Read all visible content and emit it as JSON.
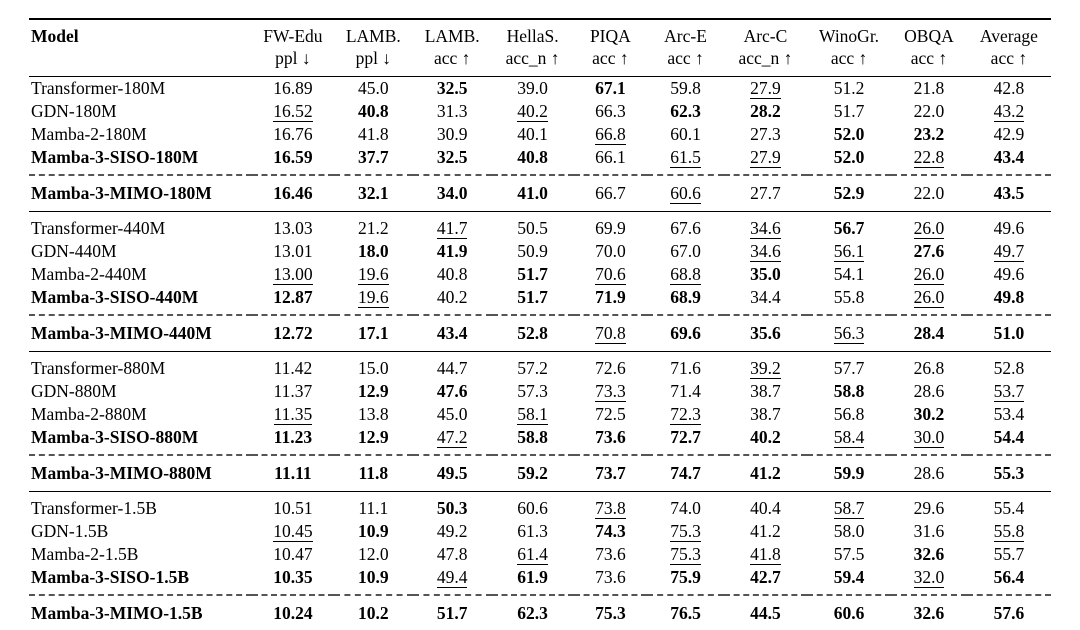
{
  "table": {
    "columns": [
      {
        "l1": "Model",
        "l2": ""
      },
      {
        "l1": "FW-Edu",
        "l2": "ppl ↓"
      },
      {
        "l1": "LAMB.",
        "l2": "ppl ↓"
      },
      {
        "l1": "LAMB.",
        "l2": "acc ↑"
      },
      {
        "l1": "HellaS.",
        "l2": "acc_n ↑"
      },
      {
        "l1": "PIQA",
        "l2": "acc ↑"
      },
      {
        "l1": "Arc-E",
        "l2": "acc ↑"
      },
      {
        "l1": "Arc-C",
        "l2": "acc_n ↑"
      },
      {
        "l1": "WinoGr.",
        "l2": "acc ↑"
      },
      {
        "l1": "OBQA",
        "l2": "acc ↑"
      },
      {
        "l1": "Average",
        "l2": "acc ↑"
      }
    ],
    "style_legend": {
      "b": "bold",
      "u": "underline",
      "": "regular"
    },
    "groups": [
      {
        "rows": [
          {
            "model": "Transformer-180M",
            "bold": false,
            "cells": [
              [
                "16.89",
                ""
              ],
              [
                "45.0",
                ""
              ],
              [
                "32.5",
                "b"
              ],
              [
                "39.0",
                ""
              ],
              [
                "67.1",
                "b"
              ],
              [
                "59.8",
                ""
              ],
              [
                "27.9",
                "u"
              ],
              [
                "51.2",
                ""
              ],
              [
                "21.8",
                ""
              ],
              [
                "42.8",
                ""
              ]
            ]
          },
          {
            "model": "GDN-180M",
            "bold": false,
            "cells": [
              [
                "16.52",
                "u"
              ],
              [
                "40.8",
                "b"
              ],
              [
                "31.3",
                ""
              ],
              [
                "40.2",
                "u"
              ],
              [
                "66.3",
                ""
              ],
              [
                "62.3",
                "b"
              ],
              [
                "28.2",
                "b"
              ],
              [
                "51.7",
                ""
              ],
              [
                "22.0",
                ""
              ],
              [
                "43.2",
                "u"
              ]
            ]
          },
          {
            "model": "Mamba-2-180M",
            "bold": false,
            "cells": [
              [
                "16.76",
                ""
              ],
              [
                "41.8",
                ""
              ],
              [
                "30.9",
                ""
              ],
              [
                "40.1",
                ""
              ],
              [
                "66.8",
                "u"
              ],
              [
                "60.1",
                ""
              ],
              [
                "27.3",
                ""
              ],
              [
                "52.0",
                "b"
              ],
              [
                "23.2",
                "b"
              ],
              [
                "42.9",
                ""
              ]
            ]
          },
          {
            "model": "Mamba-3-SISO-180M",
            "bold": true,
            "cells": [
              [
                "16.59",
                "b"
              ],
              [
                "37.7",
                "b"
              ],
              [
                "32.5",
                "b"
              ],
              [
                "40.8",
                "b"
              ],
              [
                "66.1",
                ""
              ],
              [
                "61.5",
                "u"
              ],
              [
                "27.9",
                "u"
              ],
              [
                "52.0",
                "b"
              ],
              [
                "22.8",
                "u"
              ],
              [
                "43.4",
                "b"
              ]
            ]
          }
        ],
        "mimo": {
          "model": "Mamba-3-MIMO-180M",
          "bold": true,
          "cells": [
            [
              "16.46",
              "b"
            ],
            [
              "32.1",
              "b"
            ],
            [
              "34.0",
              "b"
            ],
            [
              "41.0",
              "b"
            ],
            [
              "66.7",
              ""
            ],
            [
              "60.6",
              "u"
            ],
            [
              "27.7",
              ""
            ],
            [
              "52.9",
              "b"
            ],
            [
              "22.0",
              ""
            ],
            [
              "43.5",
              "b"
            ]
          ]
        }
      },
      {
        "rows": [
          {
            "model": "Transformer-440M",
            "bold": false,
            "cells": [
              [
                "13.03",
                ""
              ],
              [
                "21.2",
                ""
              ],
              [
                "41.7",
                "u"
              ],
              [
                "50.5",
                ""
              ],
              [
                "69.9",
                ""
              ],
              [
                "67.6",
                ""
              ],
              [
                "34.6",
                "u"
              ],
              [
                "56.7",
                "b"
              ],
              [
                "26.0",
                "u"
              ],
              [
                "49.6",
                ""
              ]
            ]
          },
          {
            "model": "GDN-440M",
            "bold": false,
            "cells": [
              [
                "13.01",
                ""
              ],
              [
                "18.0",
                "b"
              ],
              [
                "41.9",
                "b"
              ],
              [
                "50.9",
                ""
              ],
              [
                "70.0",
                ""
              ],
              [
                "67.0",
                ""
              ],
              [
                "34.6",
                "u"
              ],
              [
                "56.1",
                "u"
              ],
              [
                "27.6",
                "b"
              ],
              [
                "49.7",
                "u"
              ]
            ]
          },
          {
            "model": "Mamba-2-440M",
            "bold": false,
            "cells": [
              [
                "13.00",
                "u"
              ],
              [
                "19.6",
                "u"
              ],
              [
                "40.8",
                ""
              ],
              [
                "51.7",
                "b"
              ],
              [
                "70.6",
                "u"
              ],
              [
                "68.8",
                "u"
              ],
              [
                "35.0",
                "b"
              ],
              [
                "54.1",
                ""
              ],
              [
                "26.0",
                "u"
              ],
              [
                "49.6",
                ""
              ]
            ]
          },
          {
            "model": "Mamba-3-SISO-440M",
            "bold": true,
            "cells": [
              [
                "12.87",
                "b"
              ],
              [
                "19.6",
                "u"
              ],
              [
                "40.2",
                ""
              ],
              [
                "51.7",
                "b"
              ],
              [
                "71.9",
                "b"
              ],
              [
                "68.9",
                "b"
              ],
              [
                "34.4",
                ""
              ],
              [
                "55.8",
                ""
              ],
              [
                "26.0",
                "u"
              ],
              [
                "49.8",
                "b"
              ]
            ]
          }
        ],
        "mimo": {
          "model": "Mamba-3-MIMO-440M",
          "bold": true,
          "cells": [
            [
              "12.72",
              "b"
            ],
            [
              "17.1",
              "b"
            ],
            [
              "43.4",
              "b"
            ],
            [
              "52.8",
              "b"
            ],
            [
              "70.8",
              "u"
            ],
            [
              "69.6",
              "b"
            ],
            [
              "35.6",
              "b"
            ],
            [
              "56.3",
              "u"
            ],
            [
              "28.4",
              "b"
            ],
            [
              "51.0",
              "b"
            ]
          ]
        }
      },
      {
        "rows": [
          {
            "model": "Transformer-880M",
            "bold": false,
            "cells": [
              [
                "11.42",
                ""
              ],
              [
                "15.0",
                ""
              ],
              [
                "44.7",
                ""
              ],
              [
                "57.2",
                ""
              ],
              [
                "72.6",
                ""
              ],
              [
                "71.6",
                ""
              ],
              [
                "39.2",
                "u"
              ],
              [
                "57.7",
                ""
              ],
              [
                "26.8",
                ""
              ],
              [
                "52.8",
                ""
              ]
            ]
          },
          {
            "model": "GDN-880M",
            "bold": false,
            "cells": [
              [
                "11.37",
                ""
              ],
              [
                "12.9",
                "b"
              ],
              [
                "47.6",
                "b"
              ],
              [
                "57.3",
                ""
              ],
              [
                "73.3",
                "u"
              ],
              [
                "71.4",
                ""
              ],
              [
                "38.7",
                ""
              ],
              [
                "58.8",
                "b"
              ],
              [
                "28.6",
                ""
              ],
              [
                "53.7",
                "u"
              ]
            ]
          },
          {
            "model": "Mamba-2-880M",
            "bold": false,
            "cells": [
              [
                "11.35",
                "u"
              ],
              [
                "13.8",
                ""
              ],
              [
                "45.0",
                ""
              ],
              [
                "58.1",
                "u"
              ],
              [
                "72.5",
                ""
              ],
              [
                "72.3",
                "u"
              ],
              [
                "38.7",
                ""
              ],
              [
                "56.8",
                ""
              ],
              [
                "30.2",
                "b"
              ],
              [
                "53.4",
                ""
              ]
            ]
          },
          {
            "model": "Mamba-3-SISO-880M",
            "bold": true,
            "cells": [
              [
                "11.23",
                "b"
              ],
              [
                "12.9",
                "b"
              ],
              [
                "47.2",
                "u"
              ],
              [
                "58.8",
                "b"
              ],
              [
                "73.6",
                "b"
              ],
              [
                "72.7",
                "b"
              ],
              [
                "40.2",
                "b"
              ],
              [
                "58.4",
                "u"
              ],
              [
                "30.0",
                "u"
              ],
              [
                "54.4",
                "b"
              ]
            ]
          }
        ],
        "mimo": {
          "model": "Mamba-3-MIMO-880M",
          "bold": true,
          "cells": [
            [
              "11.11",
              "b"
            ],
            [
              "11.8",
              "b"
            ],
            [
              "49.5",
              "b"
            ],
            [
              "59.2",
              "b"
            ],
            [
              "73.7",
              "b"
            ],
            [
              "74.7",
              "b"
            ],
            [
              "41.2",
              "b"
            ],
            [
              "59.9",
              "b"
            ],
            [
              "28.6",
              ""
            ],
            [
              "55.3",
              "b"
            ]
          ]
        }
      },
      {
        "rows": [
          {
            "model": "Transformer-1.5B",
            "bold": false,
            "cells": [
              [
                "10.51",
                ""
              ],
              [
                "11.1",
                ""
              ],
              [
                "50.3",
                "b"
              ],
              [
                "60.6",
                ""
              ],
              [
                "73.8",
                "u"
              ],
              [
                "74.0",
                ""
              ],
              [
                "40.4",
                ""
              ],
              [
                "58.7",
                "u"
              ],
              [
                "29.6",
                ""
              ],
              [
                "55.4",
                ""
              ]
            ]
          },
          {
            "model": "GDN-1.5B",
            "bold": false,
            "cells": [
              [
                "10.45",
                "u"
              ],
              [
                "10.9",
                "b"
              ],
              [
                "49.2",
                ""
              ],
              [
                "61.3",
                ""
              ],
              [
                "74.3",
                "b"
              ],
              [
                "75.3",
                "u"
              ],
              [
                "41.2",
                ""
              ],
              [
                "58.0",
                ""
              ],
              [
                "31.6",
                ""
              ],
              [
                "55.8",
                "u"
              ]
            ]
          },
          {
            "model": "Mamba-2-1.5B",
            "bold": false,
            "cells": [
              [
                "10.47",
                ""
              ],
              [
                "12.0",
                ""
              ],
              [
                "47.8",
                ""
              ],
              [
                "61.4",
                "u"
              ],
              [
                "73.6",
                ""
              ],
              [
                "75.3",
                "u"
              ],
              [
                "41.8",
                "u"
              ],
              [
                "57.5",
                ""
              ],
              [
                "32.6",
                "b"
              ],
              [
                "55.7",
                ""
              ]
            ]
          },
          {
            "model": "Mamba-3-SISO-1.5B",
            "bold": true,
            "cells": [
              [
                "10.35",
                "b"
              ],
              [
                "10.9",
                "b"
              ],
              [
                "49.4",
                "u"
              ],
              [
                "61.9",
                "b"
              ],
              [
                "73.6",
                ""
              ],
              [
                "75.9",
                "b"
              ],
              [
                "42.7",
                "b"
              ],
              [
                "59.4",
                "b"
              ],
              [
                "32.0",
                "u"
              ],
              [
                "56.4",
                "b"
              ]
            ]
          }
        ],
        "mimo": {
          "model": "Mamba-3-MIMO-1.5B",
          "bold": true,
          "cells": [
            [
              "10.24",
              "b"
            ],
            [
              "10.2",
              "b"
            ],
            [
              "51.7",
              "b"
            ],
            [
              "62.3",
              "b"
            ],
            [
              "75.3",
              "b"
            ],
            [
              "76.5",
              "b"
            ],
            [
              "44.5",
              "b"
            ],
            [
              "60.6",
              "b"
            ],
            [
              "32.6",
              "b"
            ],
            [
              "57.6",
              "b"
            ]
          ]
        }
      }
    ]
  }
}
